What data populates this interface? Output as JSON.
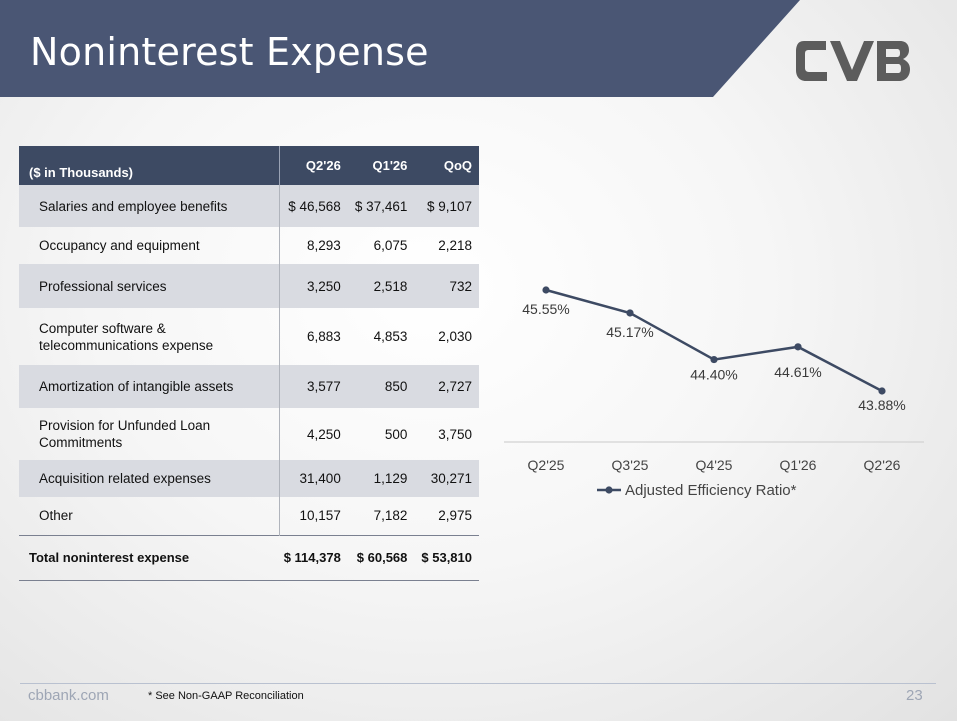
{
  "slide": {
    "title": "Noninterest Expense",
    "website": "cbbank.com",
    "footnote": "* See Non-GAAP Reconciliation",
    "page_number": "23"
  },
  "colors": {
    "banner": "#4a5674",
    "header": "#3d4a63",
    "line": "#3d4a63",
    "logo": "#5a5a5a"
  },
  "table": {
    "header": {
      "label": "($ in Thousands)",
      "c1": "Q2'26",
      "c2": "Q1'26",
      "c3": "QoQ"
    },
    "rows": [
      {
        "label": "Salaries and employee benefits",
        "c1": "$ 46,568",
        "c2": "$ 37,461",
        "c3": "$ 9,107"
      },
      {
        "label": "Occupancy and equipment",
        "c1": "8,293",
        "c2": "6,075",
        "c3": "2,218"
      },
      {
        "label": "Professional services",
        "c1": "3,250",
        "c2": "2,518",
        "c3": "732"
      },
      {
        "label": "Computer software & telecommunications expense",
        "c1": "6,883",
        "c2": "4,853",
        "c3": "2,030"
      },
      {
        "label": "Amortization of intangible assets",
        "c1": "3,577",
        "c2": "850",
        "c3": "2,727"
      },
      {
        "label": "Provision for Unfunded Loan Commitments",
        "c1": "4,250",
        "c2": "500",
        "c3": "3,750"
      },
      {
        "label": "Acquisition related expenses",
        "c1": "31,400",
        "c2": "1,129",
        "c3": "30,271"
      },
      {
        "label": "Other",
        "c1": "10,157",
        "c2": "7,182",
        "c3": "2,975"
      }
    ],
    "total": {
      "label": "Total noninterest expense",
      "c1": "$ 114,378",
      "c2": "$ 60,568",
      "c3": "$ 53,810"
    }
  },
  "chart_data": {
    "type": "line",
    "categories": [
      "Q2'25",
      "Q3'25",
      "Q4'25",
      "Q1'26",
      "Q2'26"
    ],
    "series": [
      {
        "name": "Adjusted Efficiency Ratio*",
        "values": [
          45.55,
          45.17,
          44.4,
          44.61,
          43.88
        ]
      }
    ],
    "data_labels": [
      "45.55%",
      "45.17%",
      "44.40%",
      "44.61%",
      "43.88%"
    ],
    "legend": "bottom",
    "grid": false
  }
}
